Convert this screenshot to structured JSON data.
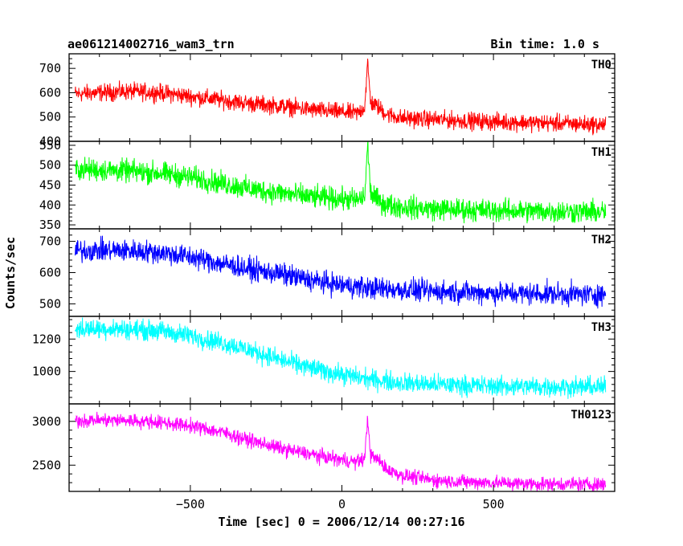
{
  "chart_data": {
    "type": "line",
    "title": "ae061214002716_wam3_trn",
    "subtitle": "Bin time: 1.0 s",
    "xlabel": "Time [sec] 0 = 2006/12/14 00:27:16",
    "ylabel": "Counts/sec",
    "xlim": [
      -900,
      900
    ],
    "xticks": [
      -500,
      0,
      500
    ],
    "xtick_labels": [
      "−500",
      "0",
      "500"
    ],
    "grid": false,
    "panels": [
      {
        "name": "TH0",
        "color": "#ff0000",
        "ylim": [
          400,
          760
        ],
        "yticks": [
          400,
          500,
          600,
          700
        ],
        "x": [
          -880,
          -800,
          -700,
          -600,
          -500,
          -400,
          -300,
          -200,
          -100,
          0,
          50,
          75,
          85,
          95,
          120,
          150,
          200,
          300,
          400,
          500,
          600,
          700,
          800,
          870
        ],
        "y": [
          595,
          600,
          605,
          600,
          585,
          570,
          555,
          545,
          530,
          520,
          515,
          540,
          720,
          560,
          540,
          510,
          495,
          490,
          485,
          480,
          478,
          475,
          470,
          468
        ],
        "noise": 35
      },
      {
        "name": "TH1",
        "color": "#00ff00",
        "ylim": [
          340,
          560
        ],
        "yticks": [
          350,
          400,
          450,
          500,
          550
        ],
        "x": [
          -880,
          -800,
          -700,
          -600,
          -500,
          -400,
          -300,
          -200,
          -100,
          0,
          50,
          75,
          85,
          95,
          120,
          150,
          200,
          300,
          400,
          500,
          600,
          700,
          800,
          870
        ],
        "y": [
          490,
          488,
          485,
          480,
          470,
          455,
          440,
          430,
          420,
          415,
          412,
          420,
          550,
          430,
          410,
          400,
          395,
          390,
          388,
          386,
          385,
          384,
          383,
          382
        ],
        "noise": 28
      },
      {
        "name": "TH2",
        "color": "#0000ff",
        "ylim": [
          460,
          740
        ],
        "yticks": [
          500,
          600,
          700
        ],
        "x": [
          -880,
          -800,
          -700,
          -600,
          -500,
          -400,
          -300,
          -200,
          -100,
          0,
          50,
          100,
          150,
          200,
          300,
          400,
          500,
          600,
          700,
          800,
          870
        ],
        "y": [
          670,
          672,
          670,
          665,
          650,
          630,
          610,
          595,
          575,
          560,
          555,
          550,
          548,
          545,
          540,
          538,
          535,
          533,
          532,
          530,
          530
        ],
        "noise": 35
      },
      {
        "name": "TH3",
        "color": "#00ffff",
        "ylim": [
          800,
          1340
        ],
        "yticks": [
          1000,
          1200
        ],
        "x": [
          -880,
          -800,
          -700,
          -600,
          -500,
          -400,
          -300,
          -200,
          -100,
          0,
          50,
          100,
          150,
          200,
          300,
          400,
          500,
          600,
          700,
          800,
          870
        ],
        "y": [
          1260,
          1265,
          1260,
          1250,
          1220,
          1180,
          1130,
          1070,
          1020,
          980,
          965,
          950,
          940,
          930,
          920,
          915,
          910,
          908,
          905,
          905,
          905
        ],
        "noise": 60
      },
      {
        "name": "TH0123",
        "color": "#ff00ff",
        "ylim": [
          2200,
          3200
        ],
        "yticks": [
          2500,
          3000
        ],
        "x": [
          -880,
          -800,
          -700,
          -600,
          -500,
          -400,
          -300,
          -200,
          -100,
          0,
          50,
          75,
          85,
          95,
          120,
          150,
          200,
          300,
          400,
          500,
          600,
          700,
          800,
          870
        ],
        "y": [
          3010,
          3015,
          3010,
          2990,
          2950,
          2880,
          2780,
          2690,
          2620,
          2560,
          2540,
          2570,
          3040,
          2610,
          2560,
          2450,
          2380,
          2330,
          2310,
          2300,
          2290,
          2285,
          2280,
          2280
        ],
        "noise": 80
      }
    ]
  }
}
